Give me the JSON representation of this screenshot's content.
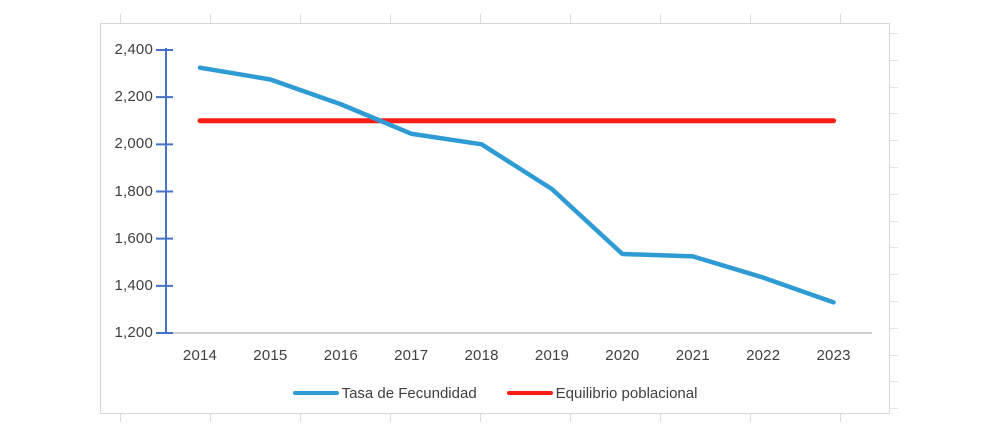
{
  "chart_data": {
    "type": "line",
    "title": "",
    "xlabel": "",
    "ylabel": "",
    "categories": [
      "2014",
      "2015",
      "2016",
      "2017",
      "2018",
      "2019",
      "2020",
      "2021",
      "2022",
      "2023"
    ],
    "series": [
      {
        "name": "Tasa de Fecundidad",
        "color": "#2e9bd5",
        "values": [
          2325,
          2275,
          2170,
          2045,
          2000,
          1810,
          1535,
          1525,
          1435,
          1330
        ]
      },
      {
        "name": "Equilibrio poblacional",
        "color": "#f91d16",
        "values": [
          2100,
          2100,
          2100,
          2100,
          2100,
          2100,
          2100,
          2100,
          2100,
          2100
        ]
      }
    ],
    "ylim": [
      1200,
      2400
    ],
    "y_tick_step": 200,
    "y_ticks": [
      2400,
      2200,
      2000,
      1800,
      1600,
      1400,
      1200
    ],
    "y_tick_labels": [
      "2,400",
      "2,200",
      "2,000",
      "1,800",
      "1,600",
      "1,400",
      "1,200"
    ],
    "grid": false,
    "legend_position": "bottom"
  },
  "colors": {
    "y_axis_line": "#4472c4",
    "x_axis_line": "#bfbfbf",
    "frame_border": "#d6d6d6",
    "label_text": "#404040",
    "series_blue": "#2e9bd5",
    "series_red": "#f91d16"
  }
}
